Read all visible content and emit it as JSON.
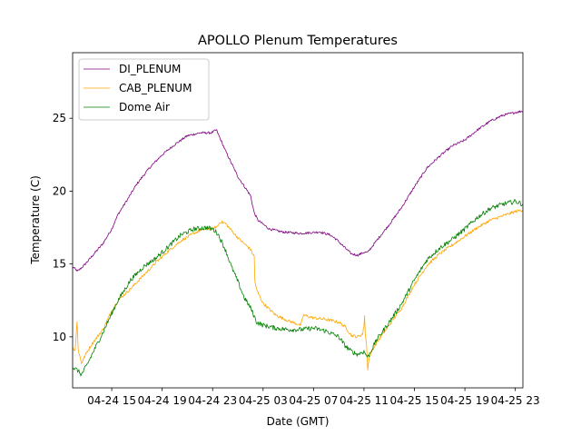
{
  "chart_data": {
    "type": "line",
    "title": "APOLLO Plenum Temperatures",
    "xlabel": "Date (GMT)",
    "ylabel": "Temperature (C)",
    "x_unit": "hours since 04-24 00:00 GMT",
    "xlim": [
      11.9,
      47.6
    ],
    "ylim": [
      6.5,
      29.5
    ],
    "x_ticks": [
      {
        "value": 15,
        "label": "04-24 15"
      },
      {
        "value": 19,
        "label": "04-24 19"
      },
      {
        "value": 23,
        "label": "04-24 23"
      },
      {
        "value": 27,
        "label": "04-25 03"
      },
      {
        "value": 31,
        "label": "04-25 07"
      },
      {
        "value": 35,
        "label": "04-25 11"
      },
      {
        "value": 39,
        "label": "04-25 15"
      },
      {
        "value": 43,
        "label": "04-25 19"
      },
      {
        "value": 47,
        "label": "04-25 23"
      }
    ],
    "y_ticks": [
      {
        "value": 10,
        "label": "10"
      },
      {
        "value": 15,
        "label": "15"
      },
      {
        "value": 20,
        "label": "20"
      },
      {
        "value": 25,
        "label": "25"
      }
    ],
    "legend": {
      "placement": "top-left"
    },
    "series": [
      {
        "name": "DI_PLENUM",
        "color": "#800080",
        "noise": 0.08,
        "points": [
          [
            11.9,
            14.8
          ],
          [
            12.3,
            14.5
          ],
          [
            12.8,
            14.9
          ],
          [
            13.5,
            15.6
          ],
          [
            14.3,
            16.4
          ],
          [
            15.0,
            17.4
          ],
          [
            15.5,
            18.4
          ],
          [
            16.3,
            19.5
          ],
          [
            17.0,
            20.5
          ],
          [
            18.0,
            21.6
          ],
          [
            19.0,
            22.5
          ],
          [
            20.0,
            23.2
          ],
          [
            21.0,
            23.8
          ],
          [
            22.0,
            24.0
          ],
          [
            22.9,
            24.0
          ],
          [
            23.3,
            24.2
          ],
          [
            23.6,
            23.6
          ],
          [
            24.0,
            22.8
          ],
          [
            25.0,
            21.0
          ],
          [
            26.0,
            19.7
          ],
          [
            26.3,
            18.5
          ],
          [
            26.6,
            18.0
          ],
          [
            27.5,
            17.4
          ],
          [
            28.5,
            17.2
          ],
          [
            30.0,
            17.1
          ],
          [
            31.5,
            17.2
          ],
          [
            32.3,
            17.0
          ],
          [
            32.8,
            16.7
          ],
          [
            33.5,
            16.1
          ],
          [
            34.0,
            15.7
          ],
          [
            34.5,
            15.6
          ],
          [
            35.0,
            15.8
          ],
          [
            35.3,
            15.8
          ],
          [
            36.0,
            16.6
          ],
          [
            37.0,
            17.7
          ],
          [
            38.0,
            18.9
          ],
          [
            39.0,
            20.3
          ],
          [
            40.0,
            21.6
          ],
          [
            41.0,
            22.4
          ],
          [
            42.0,
            23.1
          ],
          [
            43.0,
            23.5
          ],
          [
            44.0,
            24.2
          ],
          [
            45.0,
            24.8
          ],
          [
            46.0,
            25.2
          ],
          [
            47.0,
            25.4
          ],
          [
            47.6,
            25.5
          ]
        ]
      },
      {
        "name": "CAB_PLENUM",
        "color": "#ffa500",
        "noise": 0.1,
        "points": [
          [
            11.9,
            9.2
          ],
          [
            12.1,
            9.1
          ],
          [
            12.25,
            11.0
          ],
          [
            12.35,
            9.1
          ],
          [
            12.6,
            8.2
          ],
          [
            13.0,
            8.9
          ],
          [
            13.5,
            9.6
          ],
          [
            14.3,
            10.5
          ],
          [
            15.0,
            11.8
          ],
          [
            15.5,
            12.5
          ],
          [
            16.5,
            13.3
          ],
          [
            17.5,
            14.2
          ],
          [
            18.5,
            15.1
          ],
          [
            19.5,
            15.9
          ],
          [
            20.5,
            16.6
          ],
          [
            21.5,
            17.1
          ],
          [
            22.0,
            17.3
          ],
          [
            22.5,
            17.4
          ],
          [
            23.0,
            17.4
          ],
          [
            23.4,
            17.6
          ],
          [
            23.6,
            17.9
          ],
          [
            24.0,
            17.8
          ],
          [
            25.0,
            16.8
          ],
          [
            26.0,
            16.0
          ],
          [
            26.3,
            15.5
          ],
          [
            26.35,
            13.8
          ],
          [
            26.5,
            13.2
          ],
          [
            27.0,
            12.3
          ],
          [
            28.0,
            11.5
          ],
          [
            29.0,
            11.1
          ],
          [
            30.0,
            10.8
          ],
          [
            30.2,
            11.5
          ],
          [
            31.0,
            11.3
          ],
          [
            32.0,
            11.2
          ],
          [
            33.0,
            11.0
          ],
          [
            33.5,
            10.7
          ],
          [
            34.0,
            10.1
          ],
          [
            34.5,
            10.0
          ],
          [
            34.9,
            10.2
          ],
          [
            35.0,
            10.8
          ],
          [
            35.05,
            11.5
          ],
          [
            35.1,
            10.2
          ],
          [
            35.2,
            9.5
          ],
          [
            35.3,
            7.8
          ],
          [
            35.4,
            8.5
          ],
          [
            35.6,
            9.0
          ],
          [
            36.0,
            9.6
          ],
          [
            37.0,
            10.8
          ],
          [
            38.0,
            12.0
          ],
          [
            39.0,
            13.6
          ],
          [
            40.0,
            14.9
          ],
          [
            41.0,
            15.7
          ],
          [
            42.0,
            16.3
          ],
          [
            43.0,
            16.9
          ],
          [
            44.0,
            17.5
          ],
          [
            45.0,
            18.0
          ],
          [
            46.0,
            18.3
          ],
          [
            47.0,
            18.6
          ],
          [
            47.6,
            18.7
          ]
        ]
      },
      {
        "name": "Dome Air",
        "color": "#008000",
        "noise": 0.16,
        "points": [
          [
            11.9,
            7.9
          ],
          [
            12.3,
            7.7
          ],
          [
            12.6,
            7.4
          ],
          [
            13.0,
            8.0
          ],
          [
            13.5,
            8.9
          ],
          [
            14.3,
            10.3
          ],
          [
            15.0,
            11.6
          ],
          [
            15.5,
            12.5
          ],
          [
            16.5,
            13.9
          ],
          [
            17.5,
            14.8
          ],
          [
            18.5,
            15.4
          ],
          [
            19.5,
            16.2
          ],
          [
            20.5,
            17.0
          ],
          [
            21.5,
            17.4
          ],
          [
            22.5,
            17.5
          ],
          [
            23.0,
            17.4
          ],
          [
            23.4,
            17.1
          ],
          [
            24.0,
            16.0
          ],
          [
            24.5,
            14.8
          ],
          [
            25.0,
            13.8
          ],
          [
            25.5,
            12.7
          ],
          [
            26.0,
            12.0
          ],
          [
            26.5,
            11.0
          ],
          [
            27.0,
            10.8
          ],
          [
            28.0,
            10.6
          ],
          [
            29.0,
            10.5
          ],
          [
            30.0,
            10.5
          ],
          [
            31.0,
            10.6
          ],
          [
            32.0,
            10.4
          ],
          [
            33.0,
            10.0
          ],
          [
            33.5,
            9.4
          ],
          [
            34.0,
            9.0
          ],
          [
            34.5,
            8.8
          ],
          [
            35.0,
            9.0
          ],
          [
            35.3,
            8.6
          ],
          [
            35.6,
            9.1
          ],
          [
            36.0,
            9.8
          ],
          [
            37.0,
            11.0
          ],
          [
            38.0,
            12.3
          ],
          [
            39.0,
            13.9
          ],
          [
            40.0,
            15.3
          ],
          [
            41.0,
            16.1
          ],
          [
            42.0,
            16.7
          ],
          [
            43.0,
            17.4
          ],
          [
            44.0,
            18.2
          ],
          [
            45.0,
            18.8
          ],
          [
            46.0,
            19.1
          ],
          [
            47.0,
            19.3
          ],
          [
            47.6,
            19.1
          ]
        ]
      }
    ]
  }
}
